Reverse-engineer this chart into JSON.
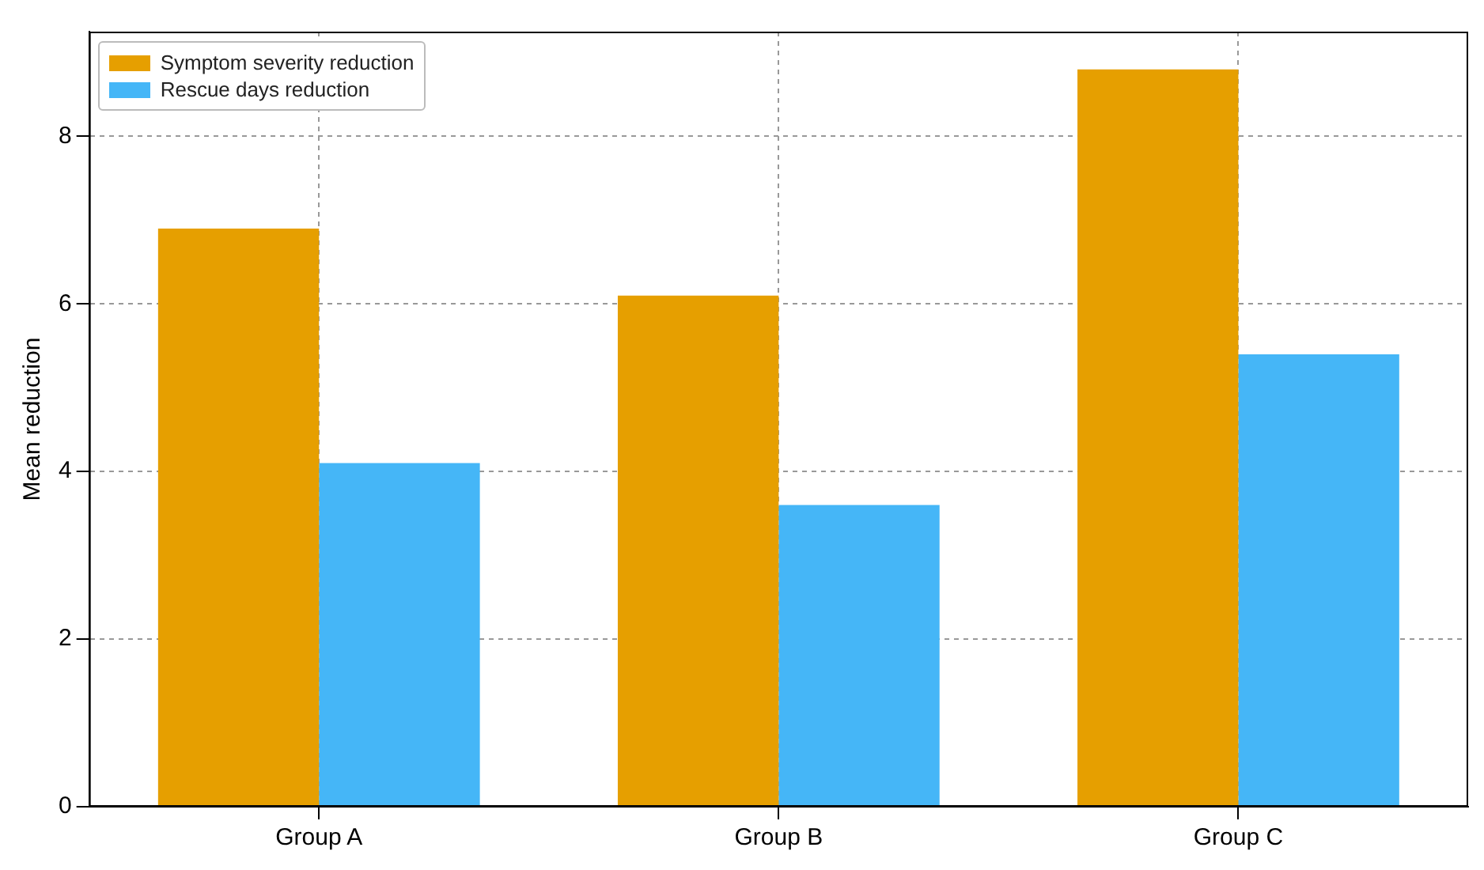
{
  "chart_data": {
    "type": "bar",
    "ylabel": "Mean reduction",
    "categories": [
      "Group A",
      "Group B",
      "Group C"
    ],
    "series": [
      {
        "name": "Symptom severity reduction",
        "color": "#e69f00",
        "values": [
          6.9,
          6.1,
          8.8
        ]
      },
      {
        "name": "Rescue days reduction",
        "color": "#45b6f7",
        "values": [
          4.1,
          3.6,
          5.4
        ]
      }
    ],
    "ylim": [
      0,
      9.25
    ],
    "yticks": [
      0,
      2,
      4,
      6,
      8
    ],
    "grid": true,
    "legend": "top left"
  }
}
